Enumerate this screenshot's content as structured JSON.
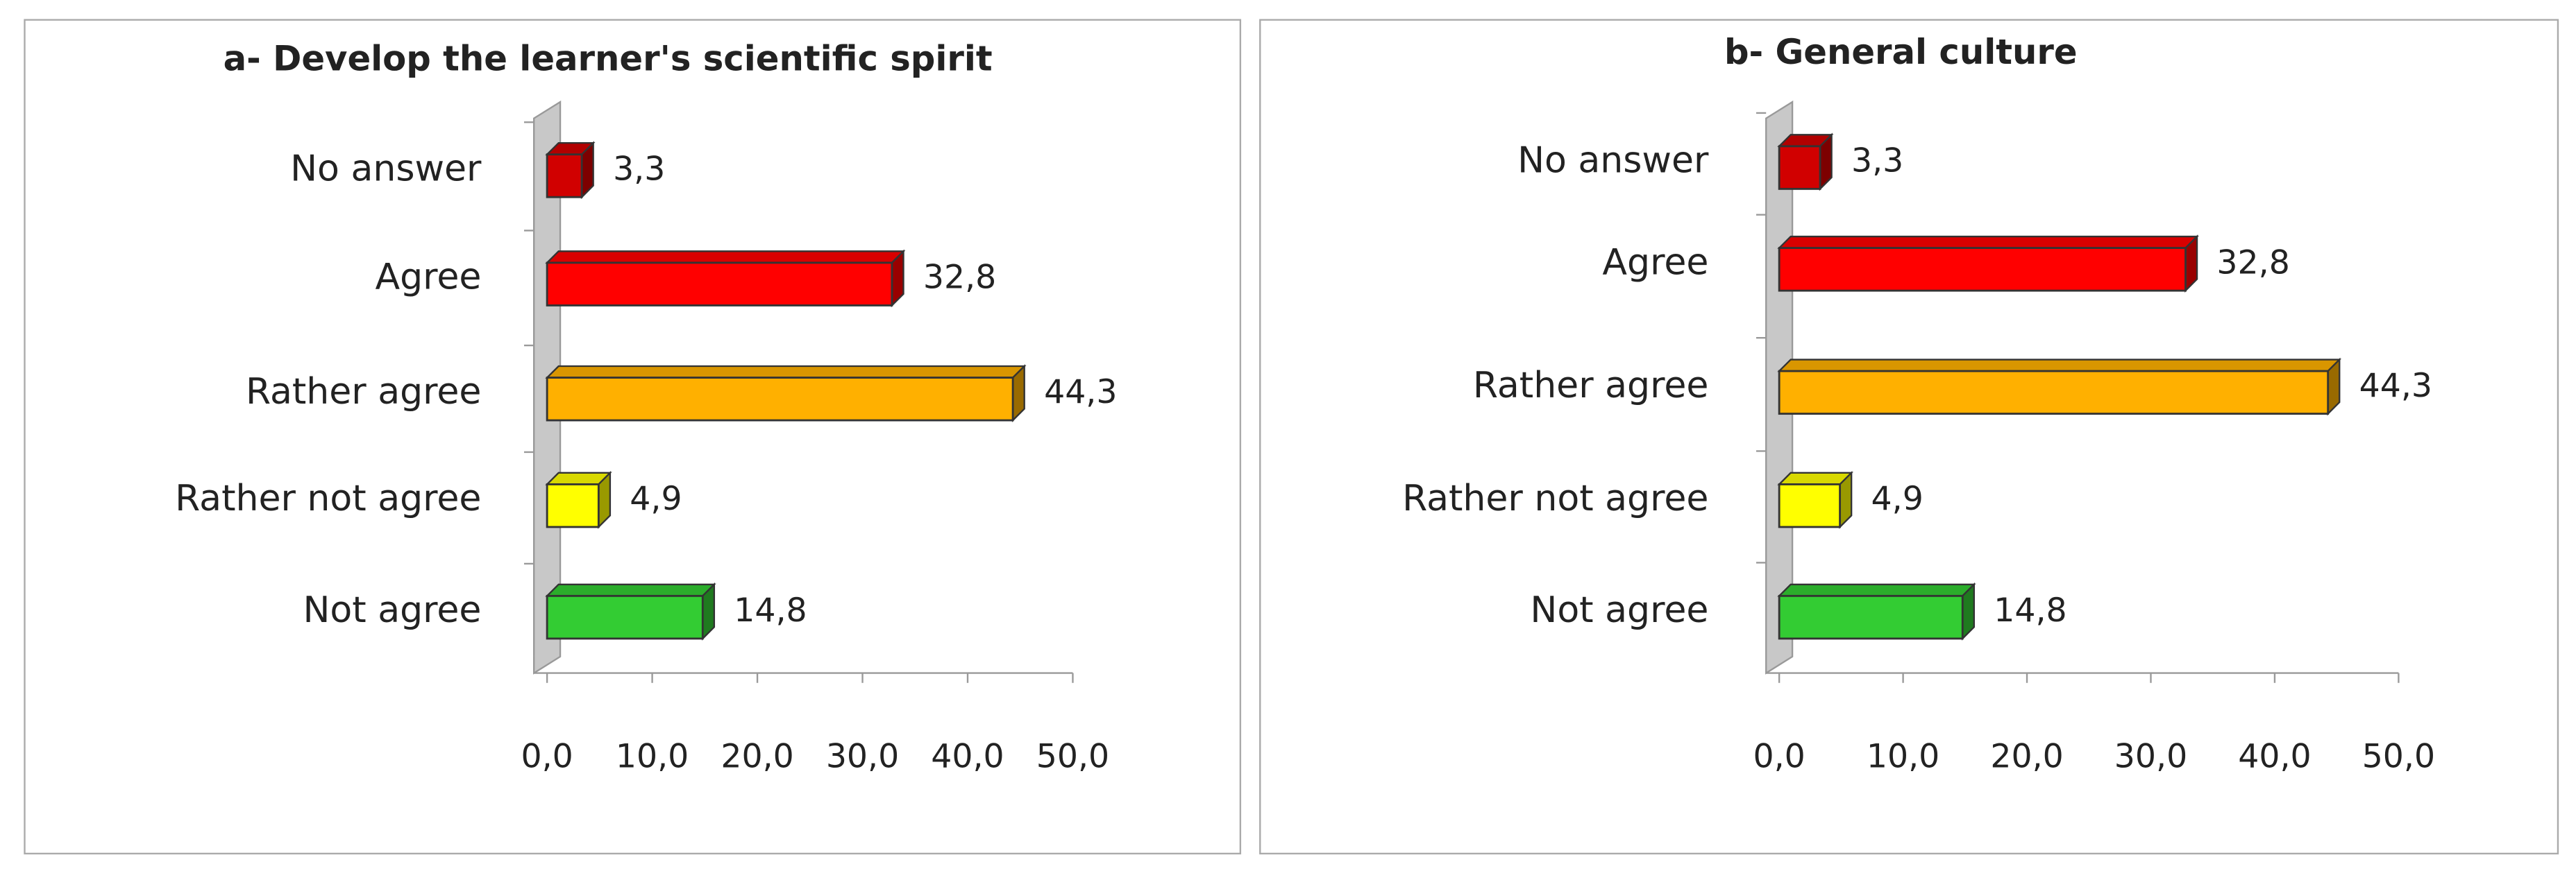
{
  "chart_data": [
    {
      "type": "bar",
      "orientation": "horizontal",
      "title": "a- Develop the learner's scientific spirit",
      "categories": [
        "No answer",
        "Agree",
        "Rather agree",
        "Rather not agree",
        "Not agree"
      ],
      "values": [
        3.3,
        32.8,
        44.3,
        4.9,
        14.8
      ],
      "value_labels": [
        "3,3",
        "32,8",
        "44,3",
        "4,9",
        "14,8"
      ],
      "colors": [
        "#d10000",
        "#ff0000",
        "#ffb000",
        "#ffff00",
        "#33cc33"
      ],
      "xlim": [
        0,
        50
      ],
      "xticks": [
        {
          "value": 0,
          "label": "0,0"
        },
        {
          "value": 10,
          "label": "10,0"
        },
        {
          "value": 20,
          "label": "20,0"
        },
        {
          "value": 30,
          "label": "30,0"
        },
        {
          "value": 40,
          "label": "40,0"
        },
        {
          "value": 50,
          "label": "50,0"
        }
      ]
    },
    {
      "type": "bar",
      "orientation": "horizontal",
      "title": "b- General culture",
      "categories": [
        "No answer",
        "Agree",
        "Rather agree",
        "Rather not agree",
        "Not agree"
      ],
      "values": [
        3.3,
        32.8,
        44.3,
        4.9,
        14.8
      ],
      "value_labels": [
        "3,3",
        "32,8",
        "44,3",
        "4,9",
        "14,8"
      ],
      "colors": [
        "#d10000",
        "#ff0000",
        "#ffb000",
        "#ffff00",
        "#33cc33"
      ],
      "xlim": [
        0,
        50
      ],
      "xticks": [
        {
          "value": 0,
          "label": "0,0"
        },
        {
          "value": 10,
          "label": "10,0"
        },
        {
          "value": 20,
          "label": "20,0"
        },
        {
          "value": 30,
          "label": "30,0"
        },
        {
          "value": 40,
          "label": "40,0"
        },
        {
          "value": 50,
          "label": "50,0"
        }
      ]
    }
  ]
}
